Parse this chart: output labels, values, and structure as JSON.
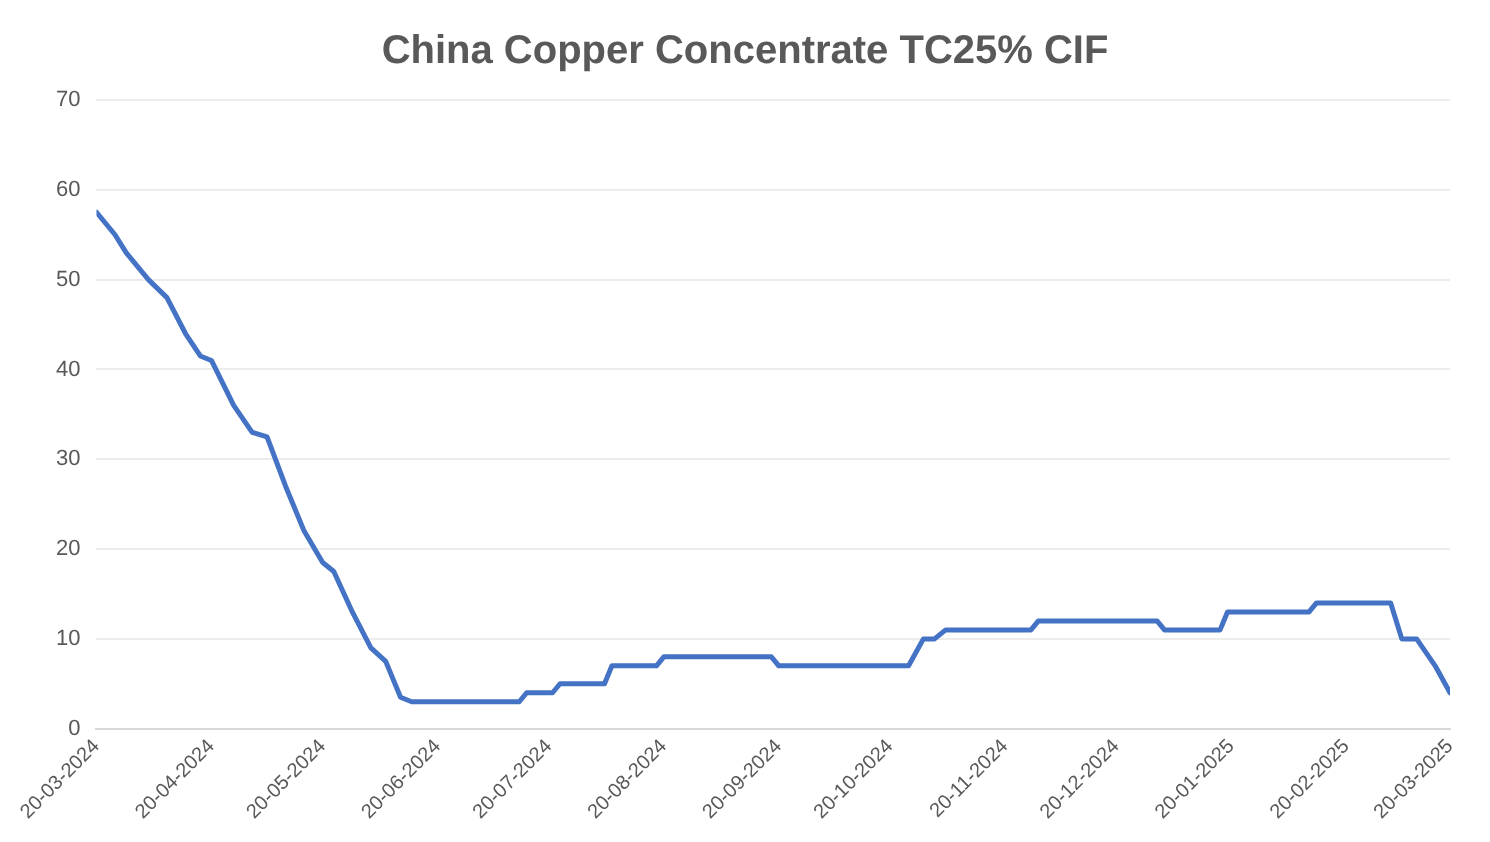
{
  "chart_data": {
    "type": "line",
    "title": "China Copper Concentrate TC25% CIF",
    "x": [
      "2024-03-20",
      "2024-03-25",
      "2024-03-28",
      "2024-04-03",
      "2024-04-08",
      "2024-04-13",
      "2024-04-17",
      "2024-04-20",
      "2024-04-26",
      "2024-05-01",
      "2024-05-05",
      "2024-05-10",
      "2024-05-15",
      "2024-05-20",
      "2024-05-23",
      "2024-05-28",
      "2024-06-02",
      "2024-06-06",
      "2024-06-10",
      "2024-06-13",
      "2024-07-12",
      "2024-07-14",
      "2024-07-21",
      "2024-07-23",
      "2024-08-04",
      "2024-08-06",
      "2024-08-18",
      "2024-08-20",
      "2024-09-18",
      "2024-09-20",
      "2024-10-25",
      "2024-10-29",
      "2024-11-01",
      "2024-11-04",
      "2024-11-27",
      "2024-11-29",
      "2024-12-31",
      "2025-01-02",
      "2025-01-17",
      "2025-01-19",
      "2025-02-10",
      "2025-02-12",
      "2025-03-04",
      "2025-03-07",
      "2025-03-11",
      "2025-03-16",
      "2025-03-20"
    ],
    "series": [
      {
        "color": "#4472c4",
        "values": [
          57.5,
          55,
          53,
          50,
          48,
          44,
          41.5,
          41,
          36,
          33,
          32.5,
          27,
          22,
          18.5,
          17.5,
          13,
          9,
          7.5,
          3.5,
          3,
          3,
          4,
          4,
          5,
          5,
          7,
          7,
          8,
          8,
          7,
          7,
          10,
          10,
          11,
          11,
          12,
          12,
          11,
          11,
          13,
          13,
          14,
          14,
          10,
          10,
          7,
          4
        ]
      }
    ],
    "ylim": [
      0,
      70
    ],
    "yticks": [
      0,
      10,
      20,
      30,
      40,
      50,
      60,
      70
    ],
    "xlim": [
      "2024-03-20",
      "2025-03-20"
    ],
    "xticks": [
      {
        "value": "2024-03-20",
        "label": "20-03-2024"
      },
      {
        "value": "2024-04-20",
        "label": "20-04-2024"
      },
      {
        "value": "2024-05-20",
        "label": "20-05-2024"
      },
      {
        "value": "2024-06-20",
        "label": "20-06-2024"
      },
      {
        "value": "2024-07-20",
        "label": "20-07-2024"
      },
      {
        "value": "2024-08-20",
        "label": "20-08-2024"
      },
      {
        "value": "2024-09-20",
        "label": "20-09-2024"
      },
      {
        "value": "2024-10-20",
        "label": "20-10-2024"
      },
      {
        "value": "2024-11-20",
        "label": "20-11-2024"
      },
      {
        "value": "2024-12-20",
        "label": "20-12-2024"
      },
      {
        "value": "2025-01-20",
        "label": "20-01-2025"
      },
      {
        "value": "2025-02-20",
        "label": "20-02-2025"
      },
      {
        "value": "2025-03-20",
        "label": "20-03-2025"
      }
    ],
    "grid": "y",
    "legend": false,
    "marker": "none",
    "line_style": "solid"
  }
}
